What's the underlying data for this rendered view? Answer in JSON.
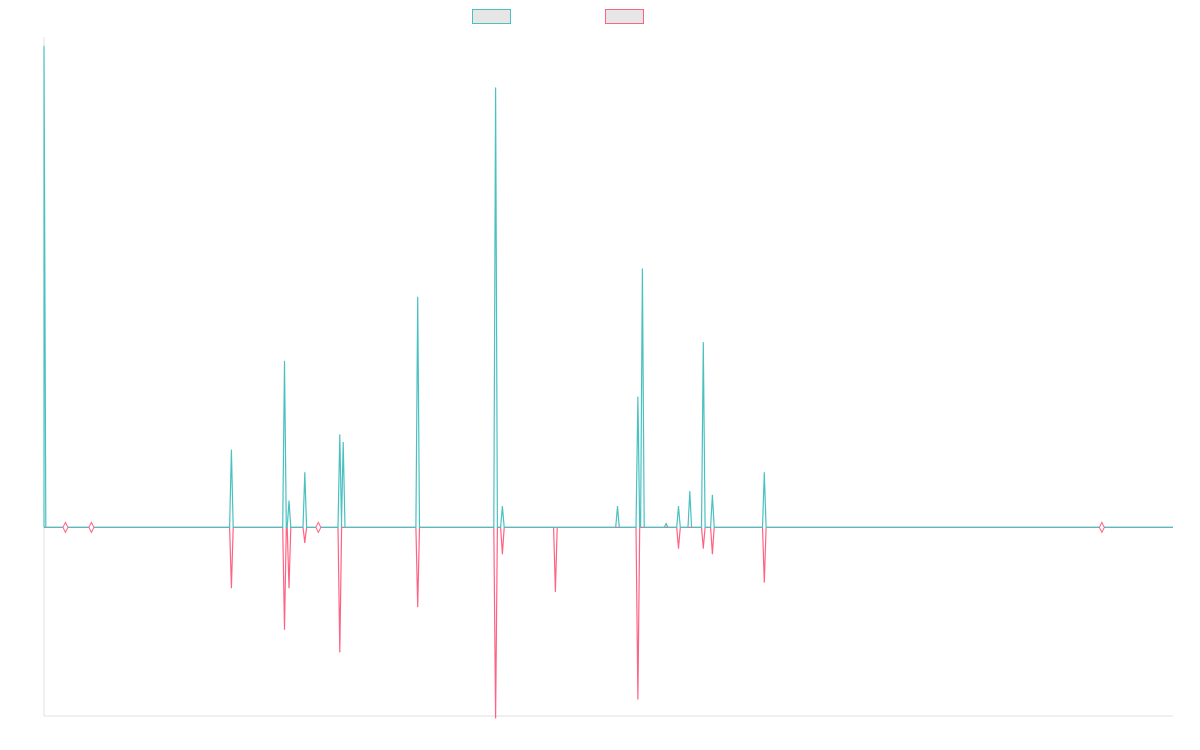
{
  "chart_data": {
    "type": "line",
    "title": "",
    "xlabel": "",
    "ylabel": "",
    "grid": false,
    "legend_placement": "top",
    "xlim": [
      0,
      1000
    ],
    "ylim": [
      -1.0,
      2.6
    ],
    "series": [
      {
        "color": "#4bc0c0",
        "peaks": [
          [
            0,
            2.55
          ],
          [
            166,
            0.41
          ],
          [
            213,
            0.88
          ],
          [
            217,
            0.14
          ],
          [
            231,
            0.29
          ],
          [
            262,
            0.49
          ],
          [
            265,
            0.45
          ],
          [
            331,
            1.22
          ],
          [
            400,
            2.33
          ],
          [
            406,
            0.11
          ],
          [
            508,
            0.11
          ],
          [
            526,
            0.69
          ],
          [
            530,
            1.37
          ],
          [
            551,
            0.02
          ],
          [
            562,
            0.11
          ],
          [
            572,
            0.19
          ],
          [
            584,
            0.98
          ],
          [
            592,
            0.17
          ],
          [
            638,
            0.29
          ]
        ],
        "markers_x": [
          19,
          42,
          243,
          937
        ]
      },
      {
        "color": "#ff6384",
        "peaks": [
          [
            166,
            -0.32
          ],
          [
            213,
            -0.54
          ],
          [
            217,
            -0.32
          ],
          [
            231,
            -0.08
          ],
          [
            262,
            -0.66
          ],
          [
            331,
            -0.42
          ],
          [
            400,
            -1.01
          ],
          [
            406,
            -0.14
          ],
          [
            453,
            -0.34
          ],
          [
            526,
            -0.91
          ],
          [
            562,
            -0.11
          ],
          [
            584,
            -0.11
          ],
          [
            592,
            -0.14
          ],
          [
            638,
            -0.29
          ]
        ],
        "markers_x": [
          19,
          42,
          243,
          937
        ]
      }
    ],
    "legend": [
      {
        "label": "",
        "color": "#4bc0c0"
      },
      {
        "label": "",
        "color": "#ff6384"
      }
    ],
    "axis_color": "#e0e0e0"
  }
}
